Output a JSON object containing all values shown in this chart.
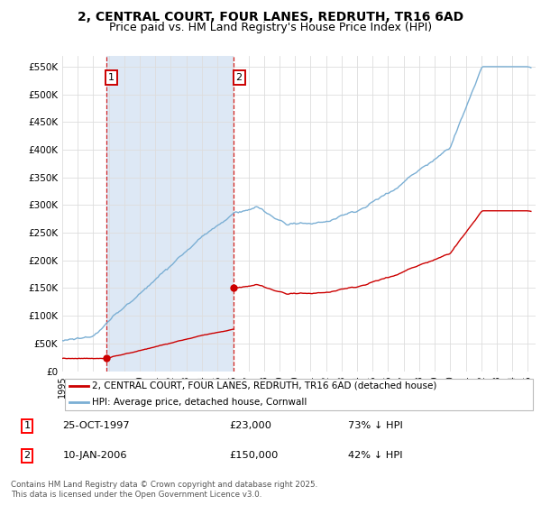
{
  "title": "2, CENTRAL COURT, FOUR LANES, REDRUTH, TR16 6AD",
  "subtitle": "Price paid vs. HM Land Registry's House Price Index (HPI)",
  "ylim": [
    0,
    570000
  ],
  "yticks": [
    0,
    50000,
    100000,
    150000,
    200000,
    250000,
    300000,
    350000,
    400000,
    450000,
    500000,
    550000
  ],
  "ytick_labels": [
    "£0",
    "£50K",
    "£100K",
    "£150K",
    "£200K",
    "£250K",
    "£300K",
    "£350K",
    "£400K",
    "£450K",
    "£500K",
    "£550K"
  ],
  "sale1_year": 1997.82,
  "sale1_price": 23000,
  "sale2_year": 2006.04,
  "sale2_price": 150000,
  "red_line_label": "2, CENTRAL COURT, FOUR LANES, REDRUTH, TR16 6AD (detached house)",
  "blue_line_label": "HPI: Average price, detached house, Cornwall",
  "footer": "Contains HM Land Registry data © Crown copyright and database right 2025.\nThis data is licensed under the Open Government Licence v3.0.",
  "bg_color": "#ffffff",
  "grid_color": "#dddddd",
  "shade_color": "#dde8f5",
  "red_color": "#cc0000",
  "blue_color": "#7bafd4",
  "title_fontsize": 10,
  "subtitle_fontsize": 9
}
